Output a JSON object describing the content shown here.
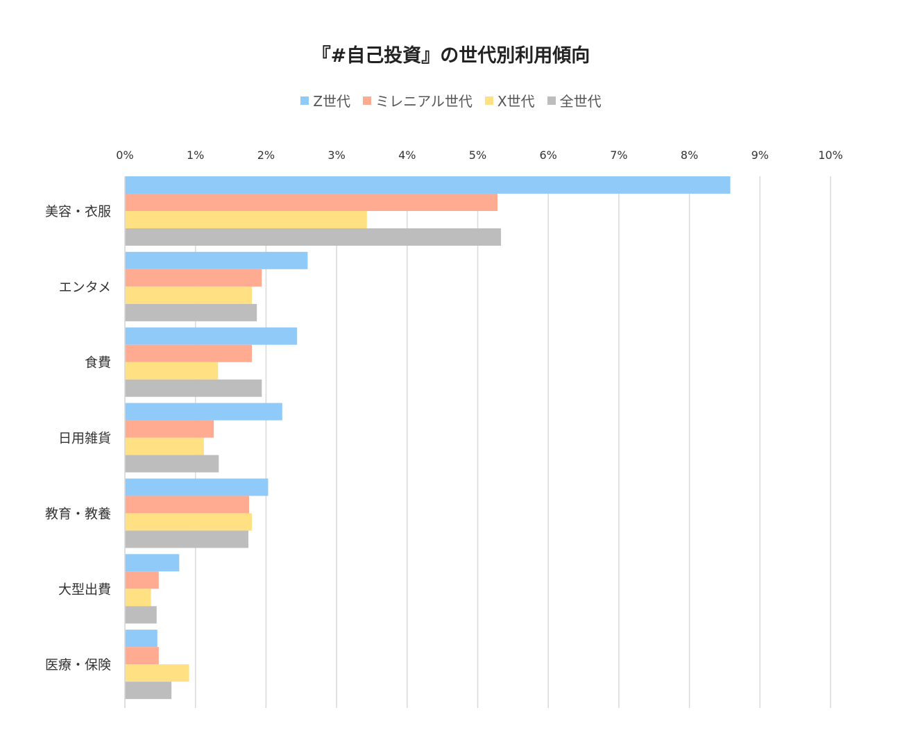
{
  "chart_data": {
    "type": "bar",
    "orientation": "horizontal",
    "title": "『#自己投資』の世代別利用傾向",
    "xlabel": "",
    "ylabel": "",
    "xlim": [
      0,
      10
    ],
    "x_ticks": [
      "0%",
      "1%",
      "2%",
      "3%",
      "4%",
      "5%",
      "6%",
      "7%",
      "8%",
      "9%",
      "10%"
    ],
    "x_axis_position": "top",
    "grid": true,
    "legend_position": "top",
    "categories": [
      "美容・衣服",
      "エンタメ",
      "食費",
      "日用雑貨",
      "教育・教養",
      "大型出費",
      "医療・保険"
    ],
    "series": [
      {
        "name": "Z世代",
        "color": "#90CAF9",
        "values": [
          8.58,
          2.59,
          2.44,
          2.23,
          2.03,
          0.77,
          0.46
        ]
      },
      {
        "name": "ミレニアル世代",
        "color": "#FFAB91",
        "values": [
          5.28,
          1.94,
          1.8,
          1.26,
          1.76,
          0.48,
          0.48
        ]
      },
      {
        "name": "X世代",
        "color": "#FFE082",
        "values": [
          3.43,
          1.8,
          1.32,
          1.12,
          1.8,
          0.37,
          0.91
        ]
      },
      {
        "name": "全世代",
        "color": "#BDBDBD",
        "values": [
          5.33,
          1.87,
          1.94,
          1.33,
          1.75,
          0.45,
          0.66
        ]
      }
    ]
  }
}
